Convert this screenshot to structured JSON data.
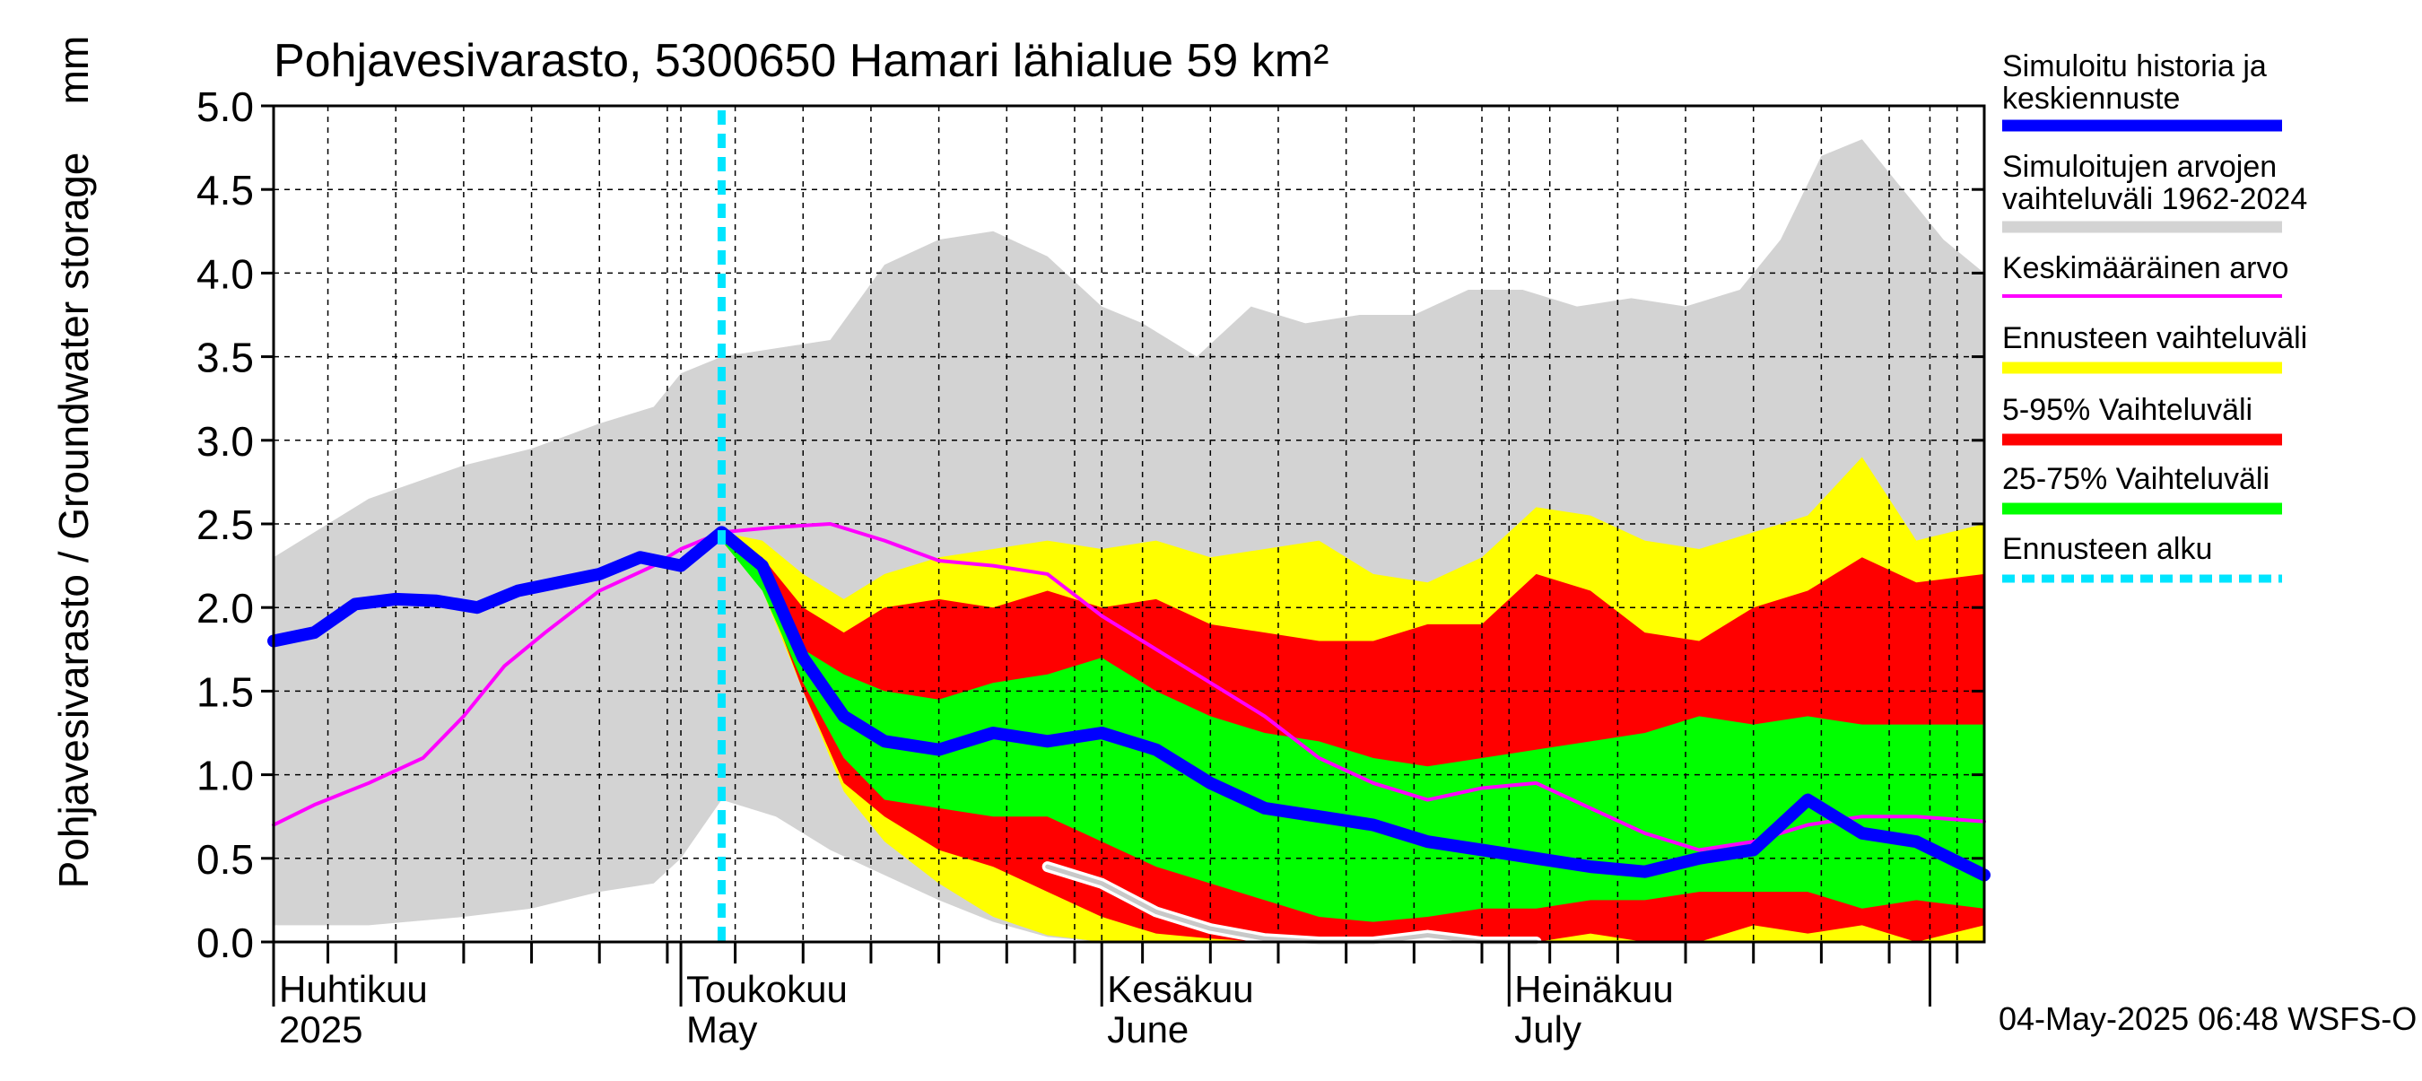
{
  "chart_data": {
    "type": "area",
    "title": "Pohjavesivarasto, 5300650 Hamari lähialue 59 km²",
    "ylabel": "Pohjavesivarasto / Groundwater storage",
    "yunit": "mm",
    "ylim": [
      0,
      5.0
    ],
    "yticks": [
      "0.0",
      "0.5",
      "1.0",
      "1.5",
      "2.0",
      "2.5",
      "3.0",
      "3.5",
      "4.0",
      "4.5",
      "5.0"
    ],
    "xlim": [
      "2025-04-01",
      "2025-08-05"
    ],
    "grid": true,
    "month_labels": [
      {
        "date": "2025-04-01",
        "fi": "Huhtikuu",
        "en": "2025"
      },
      {
        "date": "2025-05-01",
        "fi": "Toukokuu",
        "en": "May"
      },
      {
        "date": "2025-06-01",
        "fi": "Kesäkuu",
        "en": "June"
      },
      {
        "date": "2025-07-01",
        "fi": "Heinäkuu",
        "en": "July"
      }
    ],
    "forecast_start": "2025-05-04",
    "timestamp": "04-May-2025 06:48 WSFS-O",
    "legend": [
      {
        "label": "Simuloitu historia ja keskiennuste",
        "color": "#0000ff",
        "style": "thick"
      },
      {
        "label": "Simuloitujen arvojen vaihteluväli 1962-2024",
        "color": "#d3d3d3",
        "style": "thick"
      },
      {
        "label": "Keskimääräinen arvo",
        "color": "#ff00ff",
        "style": "thin"
      },
      {
        "label": "Ennusteen vaihteluväli",
        "color": "#ffff00",
        "style": "thick"
      },
      {
        "label": "5-95% Vaihteluväli",
        "color": "#ff0000",
        "style": "thick"
      },
      {
        "label": "25-75% Vaihteluväli",
        "color": "#00ff00",
        "style": "thick"
      },
      {
        "label": "Ennusteen alku",
        "color": "#00e5ff",
        "style": "dotted"
      }
    ],
    "legend_position": "right",
    "series": {
      "hist_range": {
        "x": [
          "2025-04-01",
          "2025-04-08",
          "2025-04-15",
          "2025-04-20",
          "2025-04-25",
          "2025-04-29",
          "2025-05-01",
          "2025-05-04",
          "2025-05-08",
          "2025-05-12",
          "2025-05-16",
          "2025-05-20",
          "2025-05-24",
          "2025-05-28",
          "2025-06-01",
          "2025-06-04",
          "2025-06-08",
          "2025-06-12",
          "2025-06-16",
          "2025-06-20",
          "2025-06-24",
          "2025-06-28",
          "2025-07-02",
          "2025-07-06",
          "2025-07-10",
          "2025-07-14",
          "2025-07-18",
          "2025-07-21",
          "2025-07-24",
          "2025-07-27",
          "2025-07-30",
          "2025-08-02",
          "2025-08-05"
        ],
        "upper": [
          2.3,
          2.65,
          2.85,
          2.95,
          3.1,
          3.2,
          3.4,
          3.5,
          3.55,
          3.6,
          4.05,
          4.2,
          4.25,
          4.1,
          3.8,
          3.7,
          3.5,
          3.8,
          3.7,
          3.75,
          3.75,
          3.9,
          3.9,
          3.8,
          3.85,
          3.8,
          3.9,
          4.2,
          4.7,
          4.8,
          4.5,
          4.2,
          4.0
        ],
        "lower": [
          0.1,
          0.1,
          0.15,
          0.2,
          0.3,
          0.35,
          0.5,
          0.85,
          0.75,
          0.55,
          0.4,
          0.25,
          0.12,
          0.03,
          0.0,
          0.0,
          0.0,
          0.0,
          0.0,
          0.0,
          0.0,
          0.0,
          0.0,
          0.0,
          0.0,
          0.0,
          0.0,
          0.0,
          0.0,
          0.0,
          0.0,
          0.0,
          0.0
        ]
      },
      "forecast_range": {
        "x": [
          "2025-05-04",
          "2025-05-07",
          "2025-05-10",
          "2025-05-13",
          "2025-05-16",
          "2025-05-20",
          "2025-05-24",
          "2025-05-28",
          "2025-06-01",
          "2025-06-05",
          "2025-06-09",
          "2025-06-13",
          "2025-06-17",
          "2025-06-21",
          "2025-06-25",
          "2025-06-29",
          "2025-07-03",
          "2025-07-07",
          "2025-07-11",
          "2025-07-15",
          "2025-07-19",
          "2025-07-23",
          "2025-07-27",
          "2025-07-31",
          "2025-08-05"
        ],
        "upper": [
          2.45,
          2.4,
          2.2,
          2.05,
          2.2,
          2.3,
          2.35,
          2.4,
          2.35,
          2.4,
          2.3,
          2.35,
          2.4,
          2.2,
          2.15,
          2.3,
          2.6,
          2.55,
          2.4,
          2.35,
          2.45,
          2.55,
          2.9,
          2.4,
          2.5
        ],
        "lower": [
          2.4,
          2.1,
          1.5,
          0.9,
          0.6,
          0.35,
          0.15,
          0.04,
          0.0,
          0.0,
          0.0,
          0.0,
          0.0,
          0.0,
          0.0,
          0.0,
          0.0,
          0.0,
          0.0,
          0.0,
          0.0,
          0.0,
          0.0,
          0.0,
          0.0
        ]
      },
      "p5_95": {
        "x": [
          "2025-05-04",
          "2025-05-07",
          "2025-05-10",
          "2025-05-13",
          "2025-05-16",
          "2025-05-20",
          "2025-05-24",
          "2025-05-28",
          "2025-06-01",
          "2025-06-05",
          "2025-06-09",
          "2025-06-13",
          "2025-06-17",
          "2025-06-21",
          "2025-06-25",
          "2025-06-29",
          "2025-07-03",
          "2025-07-07",
          "2025-07-11",
          "2025-07-15",
          "2025-07-19",
          "2025-07-23",
          "2025-07-27",
          "2025-07-31",
          "2025-08-05"
        ],
        "upper": [
          2.45,
          2.3,
          2.0,
          1.85,
          2.0,
          2.05,
          2.0,
          2.1,
          2.0,
          2.05,
          1.9,
          1.85,
          1.8,
          1.8,
          1.9,
          1.9,
          2.2,
          2.1,
          1.85,
          1.8,
          2.0,
          2.1,
          2.3,
          2.15,
          2.2
        ],
        "lower": [
          2.4,
          2.15,
          1.5,
          0.95,
          0.75,
          0.55,
          0.45,
          0.3,
          0.15,
          0.05,
          0.02,
          0.0,
          0.0,
          0.0,
          0.0,
          0.0,
          0.0,
          0.05,
          0.0,
          0.0,
          0.1,
          0.05,
          0.1,
          0.0,
          0.1
        ]
      },
      "p25_75": {
        "x": [
          "2025-05-04",
          "2025-05-07",
          "2025-05-10",
          "2025-05-13",
          "2025-05-16",
          "2025-05-20",
          "2025-05-24",
          "2025-05-28",
          "2025-06-01",
          "2025-06-05",
          "2025-06-09",
          "2025-06-13",
          "2025-06-17",
          "2025-06-21",
          "2025-06-25",
          "2025-06-29",
          "2025-07-03",
          "2025-07-07",
          "2025-07-11",
          "2025-07-15",
          "2025-07-19",
          "2025-07-23",
          "2025-07-27",
          "2025-07-31",
          "2025-08-05"
        ],
        "upper": [
          2.45,
          2.2,
          1.75,
          1.6,
          1.5,
          1.45,
          1.55,
          1.6,
          1.7,
          1.5,
          1.35,
          1.25,
          1.2,
          1.1,
          1.05,
          1.1,
          1.15,
          1.2,
          1.25,
          1.35,
          1.3,
          1.35,
          1.3,
          1.3,
          1.3
        ],
        "lower": [
          2.4,
          2.1,
          1.55,
          1.1,
          0.85,
          0.8,
          0.75,
          0.75,
          0.6,
          0.45,
          0.35,
          0.25,
          0.15,
          0.12,
          0.15,
          0.2,
          0.2,
          0.25,
          0.25,
          0.3,
          0.3,
          0.3,
          0.2,
          0.25,
          0.2
        ]
      },
      "mean": {
        "x": [
          "2025-04-01",
          "2025-04-04",
          "2025-04-08",
          "2025-04-12",
          "2025-04-15",
          "2025-04-18",
          "2025-04-21",
          "2025-04-25",
          "2025-04-29",
          "2025-05-01",
          "2025-05-04",
          "2025-05-08",
          "2025-05-12",
          "2025-05-16",
          "2025-05-20",
          "2025-05-24",
          "2025-05-28",
          "2025-06-01",
          "2025-06-05",
          "2025-06-09",
          "2025-06-13",
          "2025-06-17",
          "2025-06-21",
          "2025-06-25",
          "2025-06-29",
          "2025-07-03",
          "2025-07-07",
          "2025-07-11",
          "2025-07-15",
          "2025-07-19",
          "2025-07-23",
          "2025-07-27",
          "2025-07-31",
          "2025-08-05"
        ],
        "y": [
          0.7,
          0.82,
          0.95,
          1.1,
          1.35,
          1.65,
          1.85,
          2.1,
          2.25,
          2.35,
          2.45,
          2.48,
          2.5,
          2.4,
          2.28,
          2.25,
          2.2,
          1.95,
          1.75,
          1.55,
          1.35,
          1.1,
          0.95,
          0.85,
          0.92,
          0.95,
          0.8,
          0.65,
          0.55,
          0.6,
          0.7,
          0.75,
          0.75,
          0.72
        ]
      },
      "median_forecast": {
        "x": [
          "2025-04-01",
          "2025-04-04",
          "2025-04-07",
          "2025-04-10",
          "2025-04-13",
          "2025-04-16",
          "2025-04-19",
          "2025-04-22",
          "2025-04-25",
          "2025-04-28",
          "2025-05-01",
          "2025-05-04",
          "2025-05-07",
          "2025-05-10",
          "2025-05-13",
          "2025-05-16",
          "2025-05-20",
          "2025-05-24",
          "2025-05-28",
          "2025-06-01",
          "2025-06-05",
          "2025-06-09",
          "2025-06-13",
          "2025-06-17",
          "2025-06-21",
          "2025-06-25",
          "2025-06-29",
          "2025-07-03",
          "2025-07-07",
          "2025-07-11",
          "2025-07-15",
          "2025-07-19",
          "2025-07-23",
          "2025-07-27",
          "2025-07-31",
          "2025-08-05"
        ],
        "y": [
          1.8,
          1.85,
          2.02,
          2.05,
          2.04,
          2.0,
          2.1,
          2.15,
          2.2,
          2.3,
          2.25,
          2.45,
          2.25,
          1.7,
          1.35,
          1.2,
          1.15,
          1.25,
          1.2,
          1.25,
          1.15,
          0.95,
          0.8,
          0.75,
          0.7,
          0.6,
          0.55,
          0.5,
          0.45,
          0.42,
          0.5,
          0.55,
          0.85,
          0.65,
          0.6,
          0.4
        ]
      },
      "min_line": {
        "x": [
          "2025-05-28",
          "2025-06-01",
          "2025-06-05",
          "2025-06-09",
          "2025-06-13",
          "2025-06-17",
          "2025-06-21",
          "2025-06-25",
          "2025-06-29",
          "2025-07-03"
        ],
        "y": [
          0.45,
          0.35,
          0.18,
          0.08,
          0.02,
          0.0,
          0.0,
          0.04,
          0.0,
          0.0
        ]
      }
    }
  }
}
